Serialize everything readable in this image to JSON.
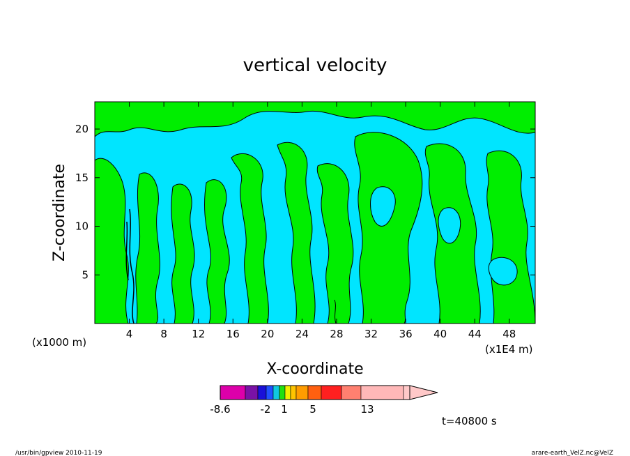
{
  "chart_data": {
    "type": "heatmap",
    "title": "vertical velocity",
    "xlabel": "X-coordinate",
    "ylabel": "Z-coordinate",
    "x_units_left": "(x1000 m)",
    "x_units_right": "(x1E4 m)",
    "x_ticks": [
      "4",
      "8",
      "12",
      "16",
      "20",
      "24",
      "28",
      "32",
      "36",
      "40",
      "44",
      "48"
    ],
    "y_ticks": [
      "5",
      "10",
      "15",
      "20"
    ],
    "xlim": [
      0,
      51
    ],
    "ylim": [
      0,
      22.8
    ],
    "colorbar": {
      "labels": [
        "-8.6",
        "-2",
        "1",
        "5",
        "13"
      ],
      "colors": [
        "#dd00aa",
        "#7a12a6",
        "#1a10d8",
        "#2050ff",
        "#10c8e0",
        "#20e010",
        "#f2f000",
        "#ffc400",
        "#ff9c00",
        "#ff6010",
        "#ff2020",
        "#ff8070",
        "#ffb8b8",
        "#ffc8c8"
      ]
    },
    "region_colors": {
      "downdraft": "#00e5ff",
      "updraft": "#00ee00",
      "strong": "#000000"
    },
    "time_label": "t=40800 s"
  },
  "footer": {
    "left": "/usr/bin/gpview   2010-11-19",
    "right": "arare-earth_VelZ.nc@VelZ"
  }
}
